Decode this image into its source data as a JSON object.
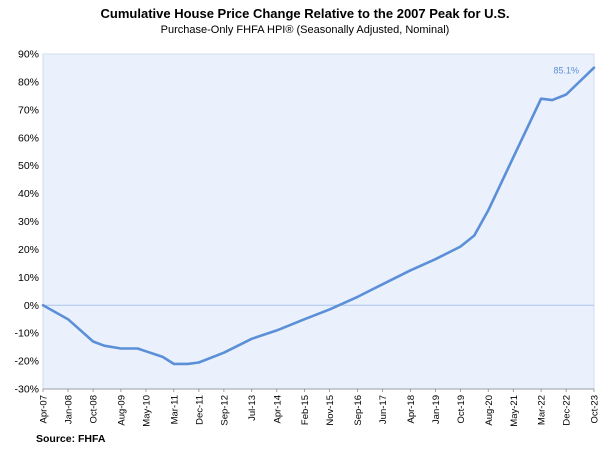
{
  "chart_data": {
    "type": "line",
    "title": "Cumulative House Price Change Relative to the 2007 Peak for U.S.",
    "subtitle": "Purchase-Only FHFA HPI® (Seasonally Adjusted, Nominal)",
    "source": "Source: FHFA",
    "xlabel": "",
    "ylabel": "",
    "ylim": [
      -30,
      90
    ],
    "y_ticks": [
      "-30%",
      "-20%",
      "-10%",
      "0%",
      "10%",
      "20%",
      "30%",
      "40%",
      "50%",
      "60%",
      "70%",
      "80%",
      "90%"
    ],
    "x_ticks": [
      "Apr-07",
      "Jan-08",
      "Oct-08",
      "Aug-09",
      "May-10",
      "Mar-11",
      "Dec-11",
      "Sep-12",
      "Jul-13",
      "Apr-14",
      "Feb-15",
      "Nov-15",
      "Sep-16",
      "Jun-17",
      "Apr-18",
      "Jan-19",
      "Oct-19",
      "Aug-20",
      "May-21",
      "Mar-22",
      "Dec-22",
      "Oct-23"
    ],
    "plot_background": "#eaf1fc",
    "line_color": "#5b8fd8",
    "zero_line_color": "#a9c4ef",
    "grid": false,
    "legend": "none",
    "series": [
      {
        "x": [
          "Apr-07",
          "Jan-08",
          "Oct-08",
          "Feb-09",
          "Aug-09",
          "Feb-10",
          "May-10",
          "Nov-10",
          "Mar-11",
          "Aug-11",
          "Dec-11",
          "Sep-12",
          "Jul-13",
          "Apr-14",
          "Feb-15",
          "Nov-15",
          "Sep-16",
          "Jun-17",
          "Apr-18",
          "Jan-19",
          "Oct-19",
          "Mar-20",
          "Aug-20",
          "May-21",
          "Mar-22",
          "Jul-22",
          "Dec-22",
          "Oct-23"
        ],
        "values": [
          0,
          -5,
          -13,
          -14.5,
          -15.5,
          -15.5,
          -16.5,
          -18.5,
          -21,
          -21,
          -20.5,
          -17,
          -12,
          -9,
          -5,
          -1.5,
          3,
          7.5,
          12.5,
          16.5,
          21,
          25,
          34,
          53,
          74,
          73.5,
          75.5,
          85.1
        ]
      }
    ],
    "data_labels": [
      {
        "x": "Oct-23",
        "text": "85.1%"
      }
    ]
  }
}
